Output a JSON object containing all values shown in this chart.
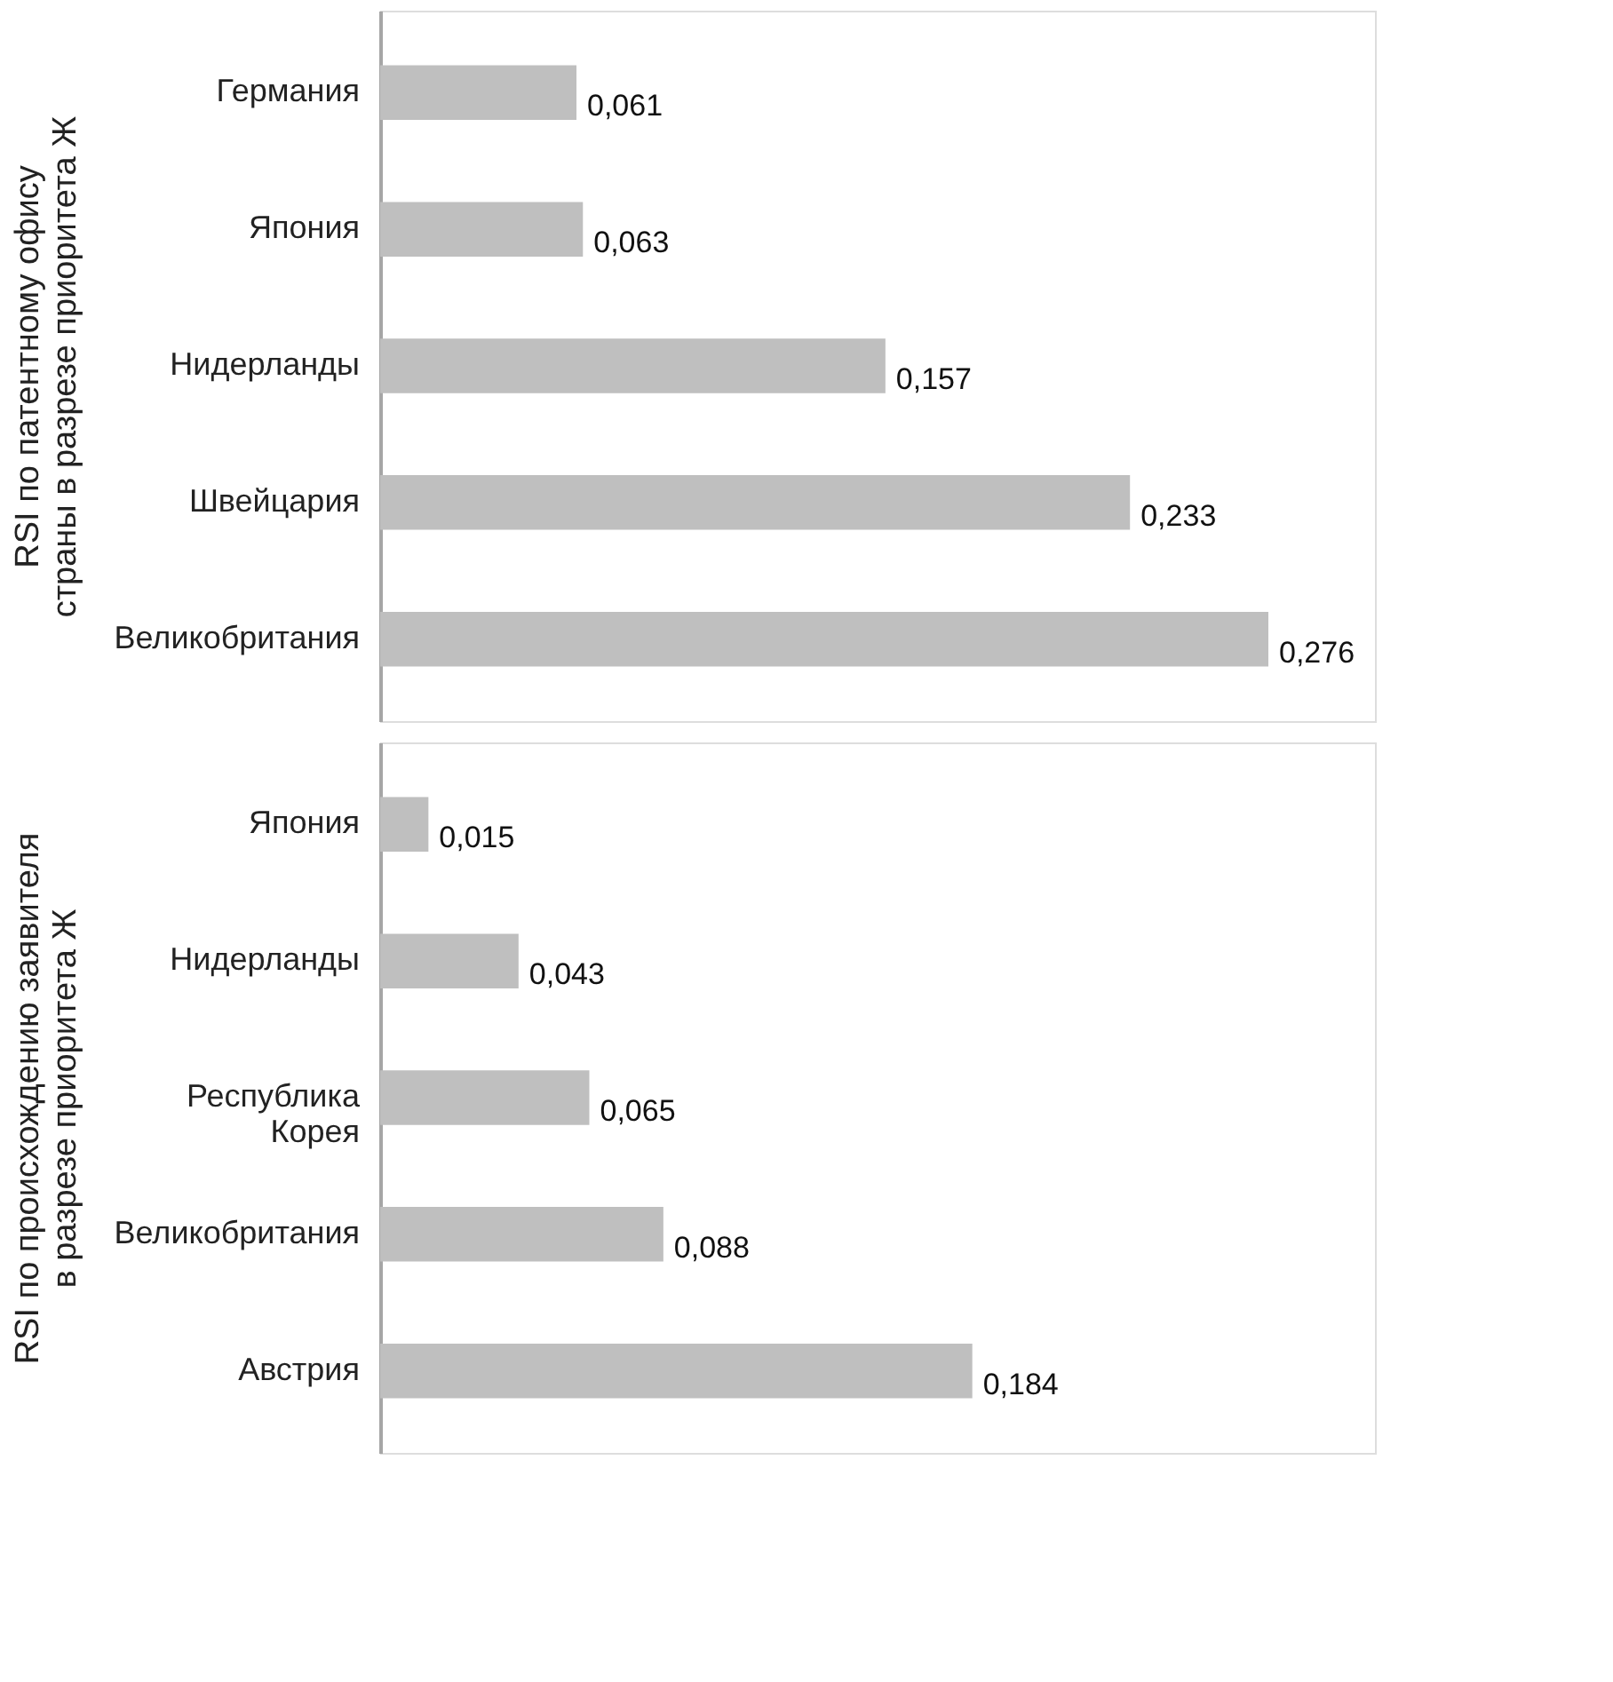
{
  "chart_data": [
    {
      "type": "bar",
      "orientation": "horizontal",
      "ylabel": "RSI по патентному офису страны в разрезе приоритета Ж",
      "categories": [
        "Германия",
        "Япония",
        "Нидерланды",
        "Швейцария",
        "Великобритания"
      ],
      "values": [
        0.061,
        0.063,
        0.157,
        0.233,
        0.276
      ],
      "value_labels": [
        "0,061",
        "0,063",
        "0,157",
        "0,233",
        "0,276"
      ],
      "color": "#bfbfbf",
      "grid": false
    },
    {
      "type": "bar",
      "orientation": "horizontal",
      "ylabel": "RSI по происхождению заявителя в разрезе приоритета Ж",
      "categories": [
        "Япония",
        "Нидерланды",
        "Республика Корея",
        "Великобритания",
        "Австрия"
      ],
      "values": [
        0.015,
        0.043,
        0.065,
        0.088,
        0.184
      ],
      "value_labels": [
        "0,015",
        "0,043",
        "0,065",
        "0,088",
        "0,184"
      ],
      "color": "#bfbfbf",
      "grid": false
    }
  ]
}
